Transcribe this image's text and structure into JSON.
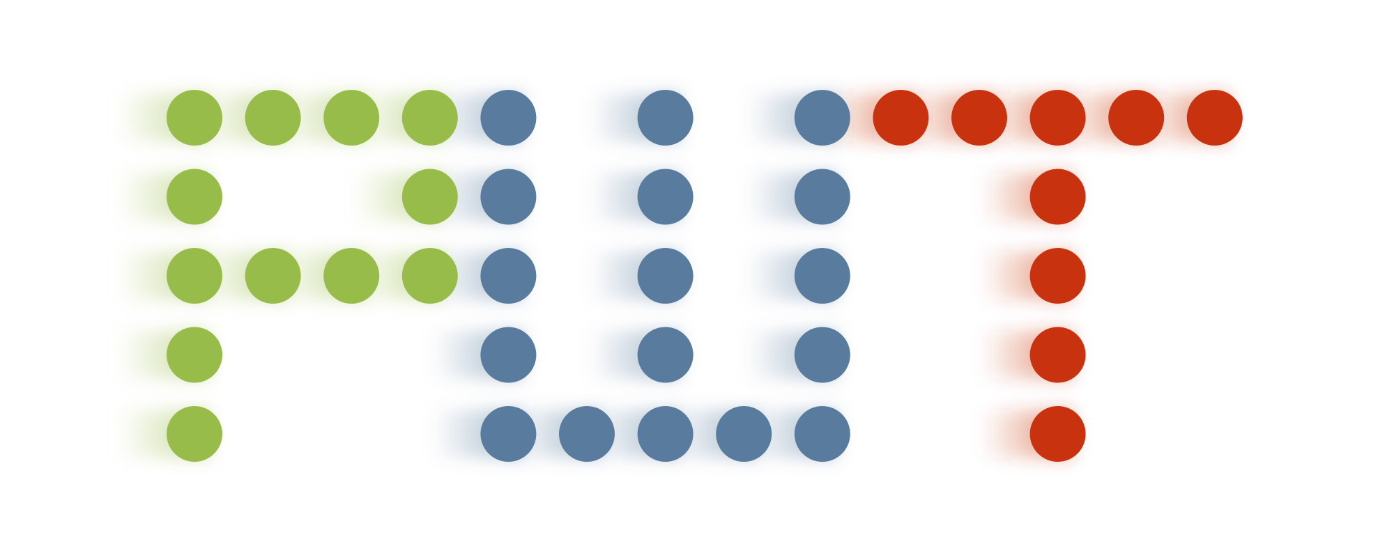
{
  "logo": {
    "letters": [
      {
        "letter": "F",
        "color": "#98bc4a",
        "dots": [
          [
            0,
            0
          ],
          [
            1,
            0
          ],
          [
            2,
            0
          ],
          [
            3,
            0
          ],
          [
            0,
            1
          ],
          [
            3,
            1
          ],
          [
            0,
            2
          ],
          [
            1,
            2
          ],
          [
            2,
            2
          ],
          [
            3,
            2
          ],
          [
            0,
            3
          ],
          [
            0,
            4
          ]
        ]
      },
      {
        "letter": "U",
        "color": "#597c9e",
        "dots": [
          [
            4,
            0
          ],
          [
            6,
            0
          ],
          [
            8,
            0
          ],
          [
            4,
            1
          ],
          [
            6,
            1
          ],
          [
            8,
            1
          ],
          [
            4,
            2
          ],
          [
            6,
            2
          ],
          [
            8,
            2
          ],
          [
            4,
            3
          ],
          [
            6,
            3
          ],
          [
            8,
            3
          ],
          [
            4,
            4
          ],
          [
            5,
            4
          ],
          [
            6,
            4
          ],
          [
            7,
            4
          ],
          [
            8,
            4
          ]
        ]
      },
      {
        "letter": "T",
        "color": "#c8320e",
        "dots": [
          [
            9,
            0
          ],
          [
            10,
            0
          ],
          [
            11,
            0
          ],
          [
            12,
            0
          ],
          [
            13,
            0
          ],
          [
            11,
            1
          ],
          [
            11,
            2
          ],
          [
            11,
            3
          ],
          [
            11,
            4
          ]
        ]
      }
    ]
  }
}
